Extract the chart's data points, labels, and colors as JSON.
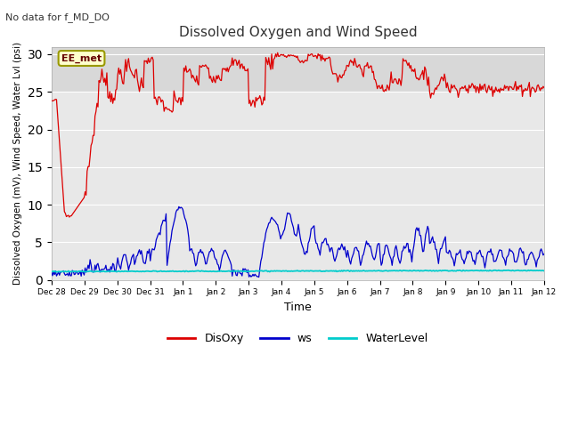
{
  "title": "Dissolved Oxygen and Wind Speed",
  "top_left_text": "No data for f_MD_DO",
  "ylabel": "Dissolved Oxygen (mV), Wind Speed, Water Lvl (psi)",
  "xlabel": "Time",
  "annotation_label": "EE_met",
  "ylim": [
    0,
    31
  ],
  "yticks": [
    0,
    5,
    10,
    15,
    20,
    25,
    30
  ],
  "fig_bg_color": "#ffffff",
  "plot_bg_color": "#e8e8e8",
  "band_color": "#d8d8d8",
  "disoxy_color": "#dd0000",
  "ws_color": "#0000cc",
  "waterlevel_color": "#00cccc",
  "grid_color": "#ffffff",
  "num_points": 500
}
